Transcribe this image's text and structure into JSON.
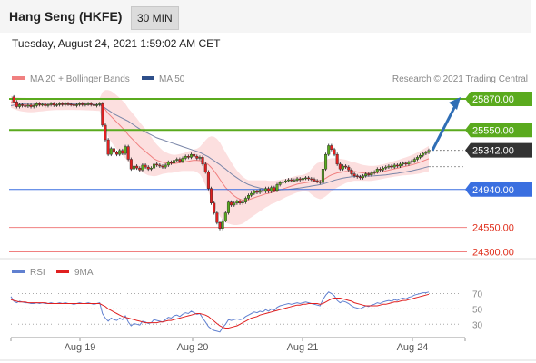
{
  "header": {
    "title": "Hang Seng (HKFE)",
    "timeframe": "30 MIN",
    "datetime": "Tuesday, August 24, 2021 1:59:02 AM CET"
  },
  "legend": {
    "ma20": "MA 20 + Bollinger Bands",
    "ma50": "MA 50",
    "credit": "Research © 2021 Trading Central",
    "rsi": "RSI",
    "rsi_ma": "9MA"
  },
  "colors": {
    "green": "#5aaa1e",
    "blue": "#3a6fe0",
    "red": "#f08080",
    "dark": "#333333",
    "arrow": "#2f6eb5",
    "rsi_line": "#6080d0",
    "rsi_ma": "#e02020",
    "band": "#fbd9d9",
    "ma50_line": "#7a86a8"
  },
  "chart_data": [
    {
      "type": "candlestick",
      "title": "Hang Seng (HKFE)",
      "x_tick_labels": [
        "Aug 19",
        "Aug 20",
        "Aug 21",
        "Aug 24"
      ],
      "ylim": [
        24230,
        26000
      ],
      "levels": [
        {
          "label": "25870.00",
          "value": 25870,
          "style": "resistance",
          "color": "#5aaa1e",
          "badge": true
        },
        {
          "label": "25550.00",
          "value": 25550,
          "style": "resistance",
          "color": "#5aaa1e",
          "badge": true
        },
        {
          "label": "25342.00",
          "value": 25342,
          "style": "last",
          "color": "#333333",
          "badge": true
        },
        {
          "label": "24940.00",
          "value": 24940,
          "style": "support",
          "color": "#3a6fe0",
          "badge": true
        },
        {
          "label": "24550.00",
          "value": 24550,
          "style": "support",
          "color": "#f08080",
          "badge": false
        },
        {
          "label": "24300.00",
          "value": 24300,
          "style": "support",
          "color": "#f08080",
          "badge": false
        }
      ],
      "close": [
        25890,
        25840,
        25790,
        25810,
        25800,
        25795,
        25805,
        25790,
        25800,
        25820,
        25810,
        25815,
        25800,
        25810,
        25820,
        25805,
        25810,
        25820,
        25810,
        25820,
        25815,
        25810,
        25800,
        25810,
        25820,
        25810,
        25815,
        25820,
        25810,
        25800,
        25810,
        25820,
        25600,
        25450,
        25300,
        25360,
        25320,
        25300,
        25340,
        25310,
        25380,
        25250,
        25150,
        25180,
        25160,
        25140,
        25190,
        25170,
        25150,
        25160,
        25200,
        25190,
        25180,
        25170,
        25190,
        25220,
        25210,
        25240,
        25250,
        25230,
        25260,
        25280,
        25270,
        25300,
        25280,
        25260,
        25270,
        25200,
        25120,
        24950,
        24800,
        24700,
        24600,
        24540,
        24620,
        24700,
        24810,
        24780,
        24800,
        24820,
        24800,
        24810,
        24850,
        24880,
        24900,
        24920,
        24910,
        24930,
        24920,
        24950,
        24920,
        24960,
        24930,
        24990,
        25010,
        25020,
        25030,
        25040,
        25030,
        25035,
        25050,
        25040,
        25055,
        25060,
        25050,
        25045,
        25030,
        25020,
        25010,
        25150,
        25300,
        25390,
        25350,
        25300,
        25200,
        25150,
        25180,
        25170,
        25140,
        25100,
        25080,
        25070,
        25060,
        25080,
        25100,
        25090,
        25110,
        25120,
        25150,
        25140,
        25160,
        25170,
        25180,
        25170,
        25190,
        25180,
        25200,
        25210,
        25200,
        25220,
        25230,
        25250,
        25270,
        25290,
        25310,
        25320,
        25342
      ],
      "ma20": [
        25840,
        25830,
        25820,
        25815,
        25810,
        25808,
        25806,
        25805,
        25804,
        25805,
        25806,
        25807,
        25808,
        25809,
        25810,
        25810,
        25810,
        25810,
        25811,
        25812,
        25812,
        25812,
        25812,
        25811,
        25810,
        25810,
        25810,
        25810,
        25810,
        25811,
        25812,
        25812,
        25790,
        25760,
        25720,
        25690,
        25660,
        25630,
        25600,
        25570,
        25540,
        25500,
        25470,
        25440,
        25410,
        25380,
        25355,
        25330,
        25305,
        25280,
        25255,
        25240,
        25230,
        25220,
        25215,
        25210,
        25205,
        25205,
        25210,
        25215,
        25220,
        25225,
        25230,
        25235,
        25240,
        25238,
        25236,
        25230,
        25215,
        25195,
        25165,
        25130,
        25090,
        25045,
        25000,
        24960,
        24930,
        24900,
        24875,
        24855,
        24840,
        24830,
        24830,
        24835,
        24845,
        24855,
        24865,
        24875,
        24885,
        24895,
        24900,
        24910,
        24915,
        24925,
        24935,
        24945,
        24955,
        24965,
        24975,
        24985,
        24995,
        25000,
        25005,
        25010,
        25015,
        25020,
        25025,
        25030,
        25030,
        25040,
        25055,
        25075,
        25090,
        25100,
        25110,
        25115,
        25120,
        25125,
        25125,
        25125,
        25125,
        25120,
        25115,
        25110,
        25108,
        25105,
        25105,
        25108,
        25112,
        25118,
        25124,
        25130,
        25138,
        25145,
        25152,
        25158,
        25165,
        25172,
        25178,
        25185,
        25192,
        25200,
        25210,
        25220,
        25232,
        25244,
        25256
      ],
      "ma50": [
        25800,
        25805,
        25810,
        25815,
        25818,
        25820,
        25822,
        25823,
        25824,
        25825,
        25825,
        25826,
        25826,
        25826,
        25826,
        25826,
        25825,
        25825,
        25824,
        25823,
        25822,
        25821,
        25820,
        25819,
        25818,
        25817,
        25816,
        25815,
        25814,
        25813,
        25812,
        25810,
        25795,
        25775,
        25755,
        25735,
        25715,
        25700,
        25685,
        25670,
        25655,
        25640,
        25620,
        25600,
        25580,
        25560,
        25545,
        25530,
        25515,
        25500,
        25485,
        25470,
        25460,
        25450,
        25440,
        25430,
        25420,
        25410,
        25400,
        25390,
        25380,
        25370,
        25360,
        25350,
        25340,
        25330,
        25320,
        25305,
        25290,
        25275,
        25255,
        25235,
        25215,
        25195,
        25170,
        25150,
        25125,
        25100,
        25080,
        25060,
        25040,
        25020,
        25005,
        24990,
        24980,
        24970,
        24962,
        24955,
        24950,
        24945,
        24942,
        24940,
        24938,
        24937,
        24937,
        24938,
        24940,
        24942,
        24945,
        24948,
        24952,
        24956,
        24960,
        24965,
        24970,
        24975,
        24980,
        24985,
        24990,
        24998,
        25005,
        25015,
        25025,
        25035,
        25042,
        25050,
        25056,
        25062,
        25066,
        25070,
        25072,
        25074,
        25075,
        25076,
        25077,
        25078,
        25079,
        25080,
        25082,
        25084,
        25087,
        25090,
        25094,
        25098,
        25102,
        25106,
        25111,
        25116,
        25121,
        25126,
        25132,
        25138,
        25145,
        25152,
        25160,
        25168,
        25176
      ],
      "bb_width": [
        60,
        62,
        65,
        68,
        70,
        72,
        72,
        72,
        70,
        68,
        66,
        64,
        62,
        60,
        58,
        56,
        55,
        55,
        55,
        55,
        55,
        55,
        55,
        55,
        55,
        56,
        57,
        58,
        60,
        62,
        64,
        66,
        150,
        200,
        240,
        260,
        270,
        275,
        280,
        280,
        280,
        275,
        270,
        265,
        260,
        250,
        240,
        230,
        220,
        200,
        180,
        160,
        140,
        120,
        110,
        100,
        95,
        90,
        88,
        88,
        90,
        95,
        100,
        105,
        110,
        120,
        140,
        180,
        230,
        280,
        320,
        350,
        370,
        380,
        370,
        360,
        340,
        320,
        300,
        280,
        260,
        240,
        220,
        200,
        190,
        180,
        170,
        160,
        150,
        140,
        130,
        120,
        115,
        110,
        105,
        100,
        95,
        92,
        90,
        88,
        86,
        85,
        85,
        90,
        100,
        130,
        160,
        180,
        190,
        190,
        185,
        180,
        170,
        160,
        150,
        140,
        130,
        120,
        110,
        100,
        95,
        90,
        85,
        82,
        80,
        78,
        76,
        75,
        74,
        74,
        74,
        75,
        76,
        78,
        80,
        82,
        85,
        88,
        92,
        96,
        100,
        105,
        110,
        115,
        120,
        125,
        130
      ]
    },
    {
      "type": "line",
      "title": "RSI",
      "y_tick_labels": [
        "70",
        "50",
        "30"
      ],
      "ylim": [
        15,
        80
      ],
      "series": [
        {
          "name": "RSI",
          "color": "#6080d0",
          "values": [
            66,
            60,
            58,
            60,
            59,
            58,
            58,
            57,
            57,
            58,
            57,
            58,
            57,
            57,
            58,
            57,
            57,
            58,
            57,
            58,
            57,
            57,
            56,
            57,
            58,
            57,
            57,
            58,
            57,
            56,
            57,
            58,
            44,
            38,
            34,
            38,
            36,
            35,
            38,
            36,
            41,
            33,
            28,
            31,
            30,
            29,
            34,
            33,
            31,
            32,
            36,
            35,
            34,
            33,
            36,
            39,
            38,
            41,
            42,
            40,
            43,
            45,
            44,
            47,
            45,
            43,
            44,
            38,
            33,
            27,
            24,
            22,
            21,
            20,
            26,
            30,
            36,
            35,
            36,
            37,
            36,
            37,
            40,
            42,
            44,
            46,
            45,
            47,
            46,
            49,
            47,
            50,
            48,
            52,
            54,
            55,
            56,
            57,
            56,
            57,
            58,
            57,
            58,
            59,
            58,
            57,
            56,
            55,
            54,
            62,
            68,
            72,
            70,
            67,
            61,
            58,
            60,
            59,
            57,
            54,
            52,
            51,
            50,
            52,
            54,
            53,
            55,
            56,
            58,
            57,
            59,
            60,
            61,
            60,
            62,
            61,
            63,
            64,
            63,
            65,
            66,
            68,
            69,
            70,
            71,
            71,
            72
          ]
        },
        {
          "name": "9MA",
          "color": "#e02020",
          "values": [
            62,
            61,
            60,
            59,
            59,
            59,
            58,
            58,
            58,
            58,
            58,
            58,
            58,
            57,
            57,
            57,
            57,
            57,
            57,
            57,
            57,
            57,
            57,
            57,
            57,
            57,
            57,
            57,
            57,
            57,
            57,
            57,
            55,
            53,
            50,
            48,
            46,
            44,
            42,
            40,
            39,
            38,
            37,
            36,
            35,
            34,
            33,
            32,
            32,
            32,
            32,
            32,
            33,
            33,
            34,
            35,
            35,
            36,
            37,
            38,
            39,
            40,
            41,
            42,
            43,
            44,
            44,
            43,
            42,
            40,
            37,
            34,
            31,
            28,
            26,
            25,
            25,
            26,
            27,
            28,
            30,
            32,
            34,
            36,
            38,
            39,
            40,
            42,
            43,
            44,
            45,
            46,
            47,
            48,
            49,
            50,
            51,
            52,
            53,
            54,
            55,
            55,
            56,
            56,
            57,
            57,
            57,
            57,
            56,
            57,
            59,
            61,
            63,
            64,
            64,
            64,
            63,
            62,
            61,
            60,
            58,
            57,
            56,
            55,
            54,
            54,
            54,
            54,
            54,
            55,
            56,
            56,
            57,
            58,
            59,
            59,
            60,
            61,
            61,
            62,
            63,
            64,
            65,
            66,
            67,
            68,
            69
          ]
        }
      ]
    }
  ]
}
